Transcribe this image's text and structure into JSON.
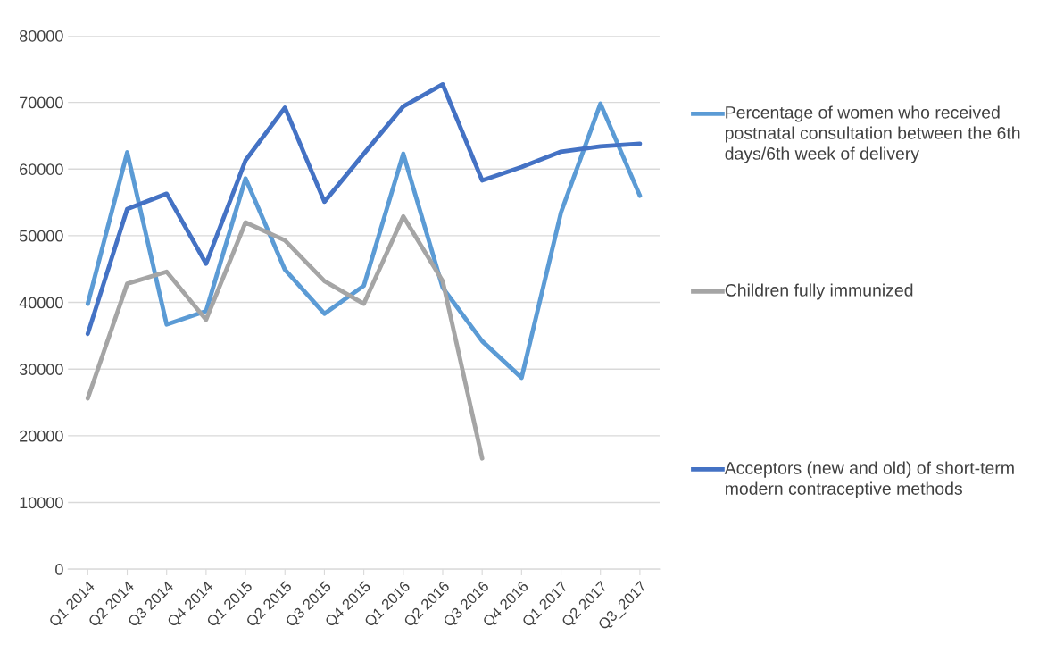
{
  "chart_data": {
    "type": "line",
    "categories": [
      "Q1 2014",
      "Q2 2014",
      "Q3 2014",
      "Q4 2014",
      "Q1 2015",
      "Q2 2015",
      "Q3 2015",
      "Q4 2015",
      "Q1 2016",
      "Q2 2016",
      "Q3 2016",
      "Q4 2016",
      "Q1 2017",
      "Q2 2017",
      "Q3_2017"
    ],
    "series": [
      {
        "name": "Percentage of women who received postnatal consultation between the 6th days/6th week of delivery",
        "color": "#5b9bd5",
        "values": [
          39800,
          62500,
          36700,
          38700,
          58600,
          44900,
          38300,
          42500,
          62300,
          42200,
          34200,
          28700,
          53500,
          69800,
          56000
        ]
      },
      {
        "name": "Children fully immunized",
        "color": "#a5a5a5",
        "values": [
          25600,
          42800,
          44600,
          37400,
          52000,
          49300,
          43200,
          39800,
          52900,
          43200,
          16600,
          null,
          null,
          null,
          null
        ]
      },
      {
        "name": "Acceptors (new and old) of short-term modern contraceptive methods",
        "color": "#4472c4",
        "values": [
          35300,
          54000,
          56300,
          45800,
          61300,
          69200,
          55100,
          62300,
          69400,
          72700,
          58300,
          60300,
          62600,
          63400,
          63800
        ]
      }
    ],
    "ylim": [
      0,
      80000
    ],
    "yticks": [
      0,
      10000,
      20000,
      30000,
      40000,
      50000,
      60000,
      70000,
      80000
    ],
    "grid": "y",
    "legend": "right"
  }
}
